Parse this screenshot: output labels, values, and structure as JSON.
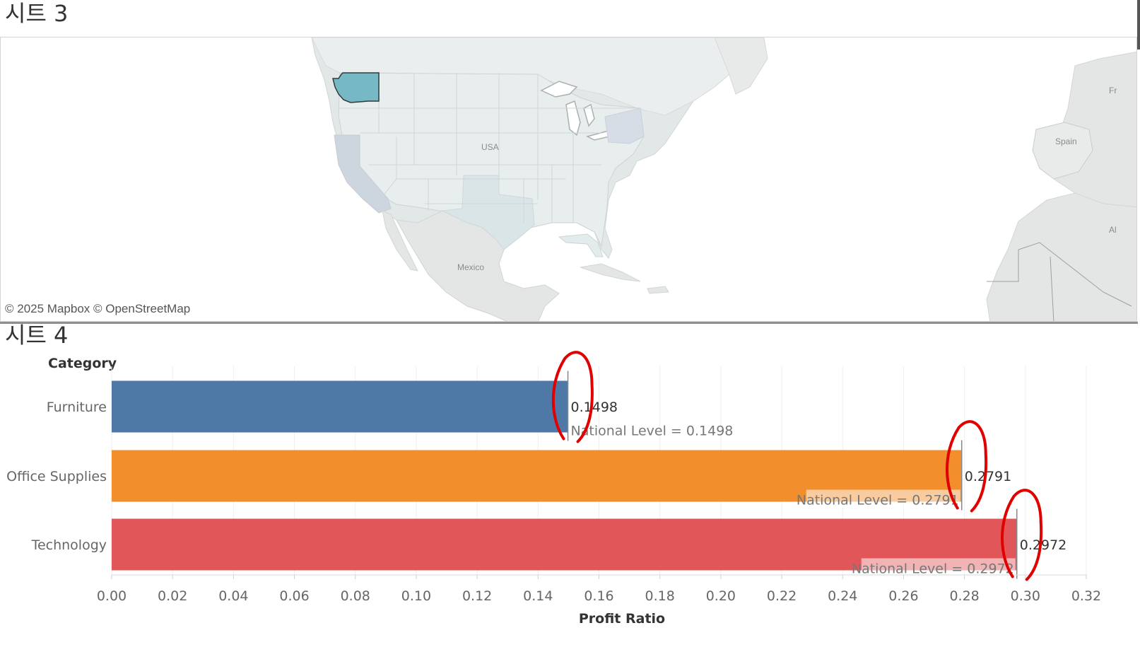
{
  "sheet3": {
    "title": "시트 3",
    "attribution": "© 2025 Mapbox © OpenStreetMap",
    "map_labels": {
      "usa": "USA",
      "mexico": "Mexico",
      "spain": "Spain",
      "france": "Fr",
      "algeria": "Al"
    },
    "highlighted_state": "Washington",
    "colors": {
      "highlight": "#76b8c4",
      "land": "#e2e7e7",
      "water": "#ffffff",
      "tinted": "#cfd8e2"
    }
  },
  "sheet4": {
    "title": "시트 4",
    "category_header": "Category"
  },
  "chart_data": {
    "type": "bar",
    "orientation": "horizontal",
    "categories": [
      "Furniture",
      "Office Supplies",
      "Technology"
    ],
    "values": [
      0.1498,
      0.2791,
      0.2972
    ],
    "value_labels": [
      "0.1498",
      "0.2791",
      "0.2972"
    ],
    "reference_labels": [
      "National Level = 0.1498",
      "National Level = 0.2791",
      "National Level = 0.2972"
    ],
    "colors": [
      "#4e79a7",
      "#f28e2b",
      "#e15759"
    ],
    "xlabel": "Profit Ratio",
    "ylabel": "Category",
    "xlim": [
      0,
      0.32
    ],
    "xticks": [
      0.0,
      0.02,
      0.04,
      0.06,
      0.08,
      0.1,
      0.12,
      0.14,
      0.16,
      0.18,
      0.2,
      0.22,
      0.24,
      0.26,
      0.28,
      0.3,
      0.32
    ],
    "xtick_labels": [
      "0.00",
      "0.02",
      "0.04",
      "0.06",
      "0.08",
      "0.10",
      "0.12",
      "0.14",
      "0.16",
      "0.18",
      "0.20",
      "0.22",
      "0.24",
      "0.26",
      "0.28",
      "0.30",
      "0.32"
    ],
    "grid": true,
    "annotation_color": "#e00000"
  }
}
